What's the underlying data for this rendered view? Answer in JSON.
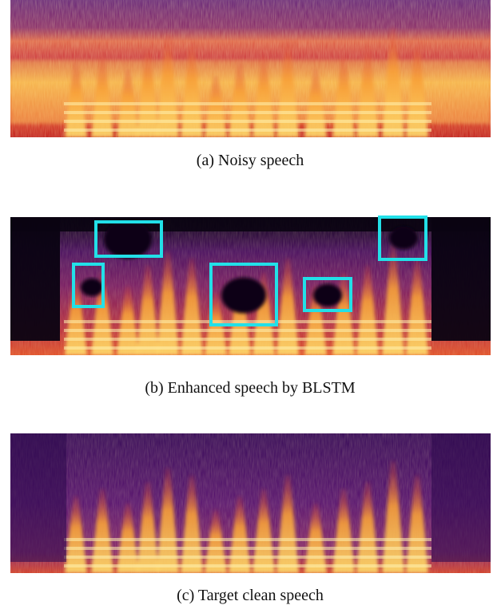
{
  "figure": {
    "panels": [
      {
        "caption": "(a) Noisy speech"
      },
      {
        "caption": "(b) Enhanced speech by BLSTM"
      },
      {
        "caption": "(c) Target clean speech"
      }
    ]
  }
}
